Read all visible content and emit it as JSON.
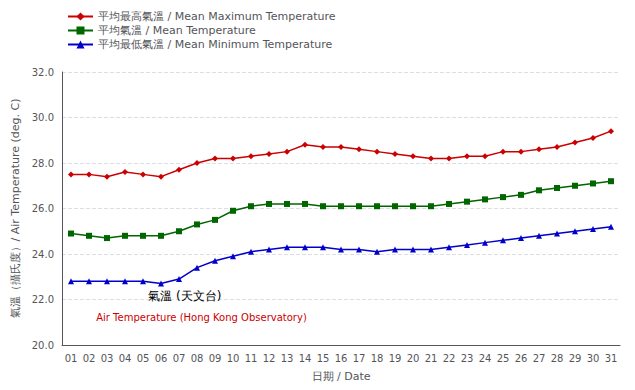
{
  "chart_data": {
    "type": "line",
    "xlabel": "日期 / Date",
    "ylabel": "氣溫（攝氏度）/ Air Temperature (deg. C)",
    "categories": [
      "01",
      "02",
      "03",
      "04",
      "05",
      "06",
      "07",
      "08",
      "09",
      "10",
      "11",
      "12",
      "13",
      "14",
      "15",
      "16",
      "17",
      "18",
      "19",
      "20",
      "21",
      "22",
      "23",
      "24",
      "25",
      "26",
      "27",
      "28",
      "29",
      "30",
      "31"
    ],
    "series": [
      {
        "name": "平均最高氣溫 / Mean Maximum Temperature",
        "color": "#cc0000",
        "marker": "diamond",
        "values": [
          27.5,
          27.5,
          27.4,
          27.6,
          27.5,
          27.4,
          27.7,
          28.0,
          28.2,
          28.2,
          28.3,
          28.4,
          28.5,
          28.8,
          28.7,
          28.7,
          28.6,
          28.5,
          28.4,
          28.3,
          28.2,
          28.2,
          28.3,
          28.3,
          28.5,
          28.5,
          28.6,
          28.7,
          28.9,
          29.1,
          29.4
        ]
      },
      {
        "name": "平均氣溫 / Mean Temperature",
        "color": "#006600",
        "marker": "square",
        "values": [
          24.9,
          24.8,
          24.7,
          24.8,
          24.8,
          24.8,
          25.0,
          25.3,
          25.5,
          25.9,
          26.1,
          26.2,
          26.2,
          26.2,
          26.1,
          26.1,
          26.1,
          26.1,
          26.1,
          26.1,
          26.1,
          26.2,
          26.3,
          26.4,
          26.5,
          26.6,
          26.8,
          26.9,
          27.0,
          27.1,
          27.2
        ]
      },
      {
        "name": "平均最低氣溫 / Mean Minimum Temperature",
        "color": "#0000cc",
        "marker": "triangle",
        "values": [
          22.8,
          22.8,
          22.8,
          22.8,
          22.8,
          22.7,
          22.9,
          23.4,
          23.7,
          23.9,
          24.1,
          24.2,
          24.3,
          24.3,
          24.3,
          24.2,
          24.2,
          24.1,
          24.2,
          24.2,
          24.2,
          24.3,
          24.4,
          24.5,
          24.6,
          24.7,
          24.8,
          24.9,
          25.0,
          25.1,
          25.2
        ]
      }
    ],
    "ylim": [
      20,
      32
    ],
    "yticks": [
      {
        "value": 20,
        "label": "20.0"
      },
      {
        "value": 22,
        "label": "22.0"
      },
      {
        "value": 24,
        "label": "24.0"
      },
      {
        "value": 26,
        "label": "26.0"
      },
      {
        "value": 28,
        "label": "28.0"
      },
      {
        "value": 30,
        "label": "30.0"
      },
      {
        "value": 32,
        "label": "32.0"
      }
    ],
    "grid": true,
    "legend": "upper left",
    "annotations": [
      {
        "text": "氣溫 (天文台)",
        "color": "#000000"
      },
      {
        "text": "Air Temperature (Hong Kong Observatory)",
        "color": "#cc0000"
      }
    ]
  }
}
